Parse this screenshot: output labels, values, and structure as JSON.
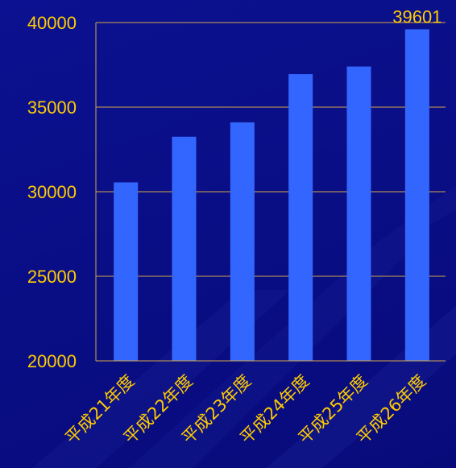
{
  "chart_data": {
    "type": "bar",
    "categories": [
      "平成21年度",
      "平成22年度",
      "平成23年度",
      "平成24年度",
      "平成25年度",
      "平成26年度"
    ],
    "values": [
      30550,
      33250,
      34100,
      36950,
      37400,
      39601
    ],
    "data_labels": [
      "",
      "",
      "",
      "",
      "",
      "39601"
    ],
    "ylim": [
      20000,
      40000
    ],
    "yticks": [
      "20000",
      "25000",
      "30000",
      "35000",
      "40000"
    ],
    "grid": true,
    "title": "",
    "xlabel": "",
    "ylabel": "",
    "colors": {
      "bar": "#3366ff",
      "text": "#ffcc00",
      "grid": "#d4a64a",
      "background": "#0a0e88"
    }
  }
}
